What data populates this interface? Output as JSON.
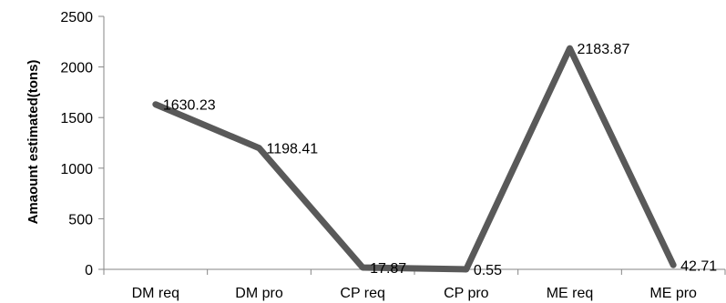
{
  "chart_data": {
    "type": "line",
    "categories": [
      "DM req",
      "DM pro",
      "CP req",
      "CP pro",
      "ME req",
      "ME pro"
    ],
    "series": [
      {
        "values": [
          1630.23,
          1198.41,
          17.87,
          0.55,
          2183.87,
          42.71
        ],
        "data_labels": [
          "1630.23",
          "1198.41",
          "17.87",
          "0.55",
          "2183.87",
          "42.71"
        ],
        "color": "#595959"
      }
    ],
    "title": "",
    "xlabel": "",
    "ylabel": "Amaount estimated(tons)",
    "ylim": [
      0,
      2500
    ],
    "yticks": [
      0,
      500,
      1000,
      1500,
      2000,
      2500
    ],
    "ytick_labels": [
      "0",
      "500",
      "1000",
      "1500",
      "2000",
      "2500"
    ],
    "grid": false,
    "legend": "none",
    "axis_color": "#868686"
  }
}
